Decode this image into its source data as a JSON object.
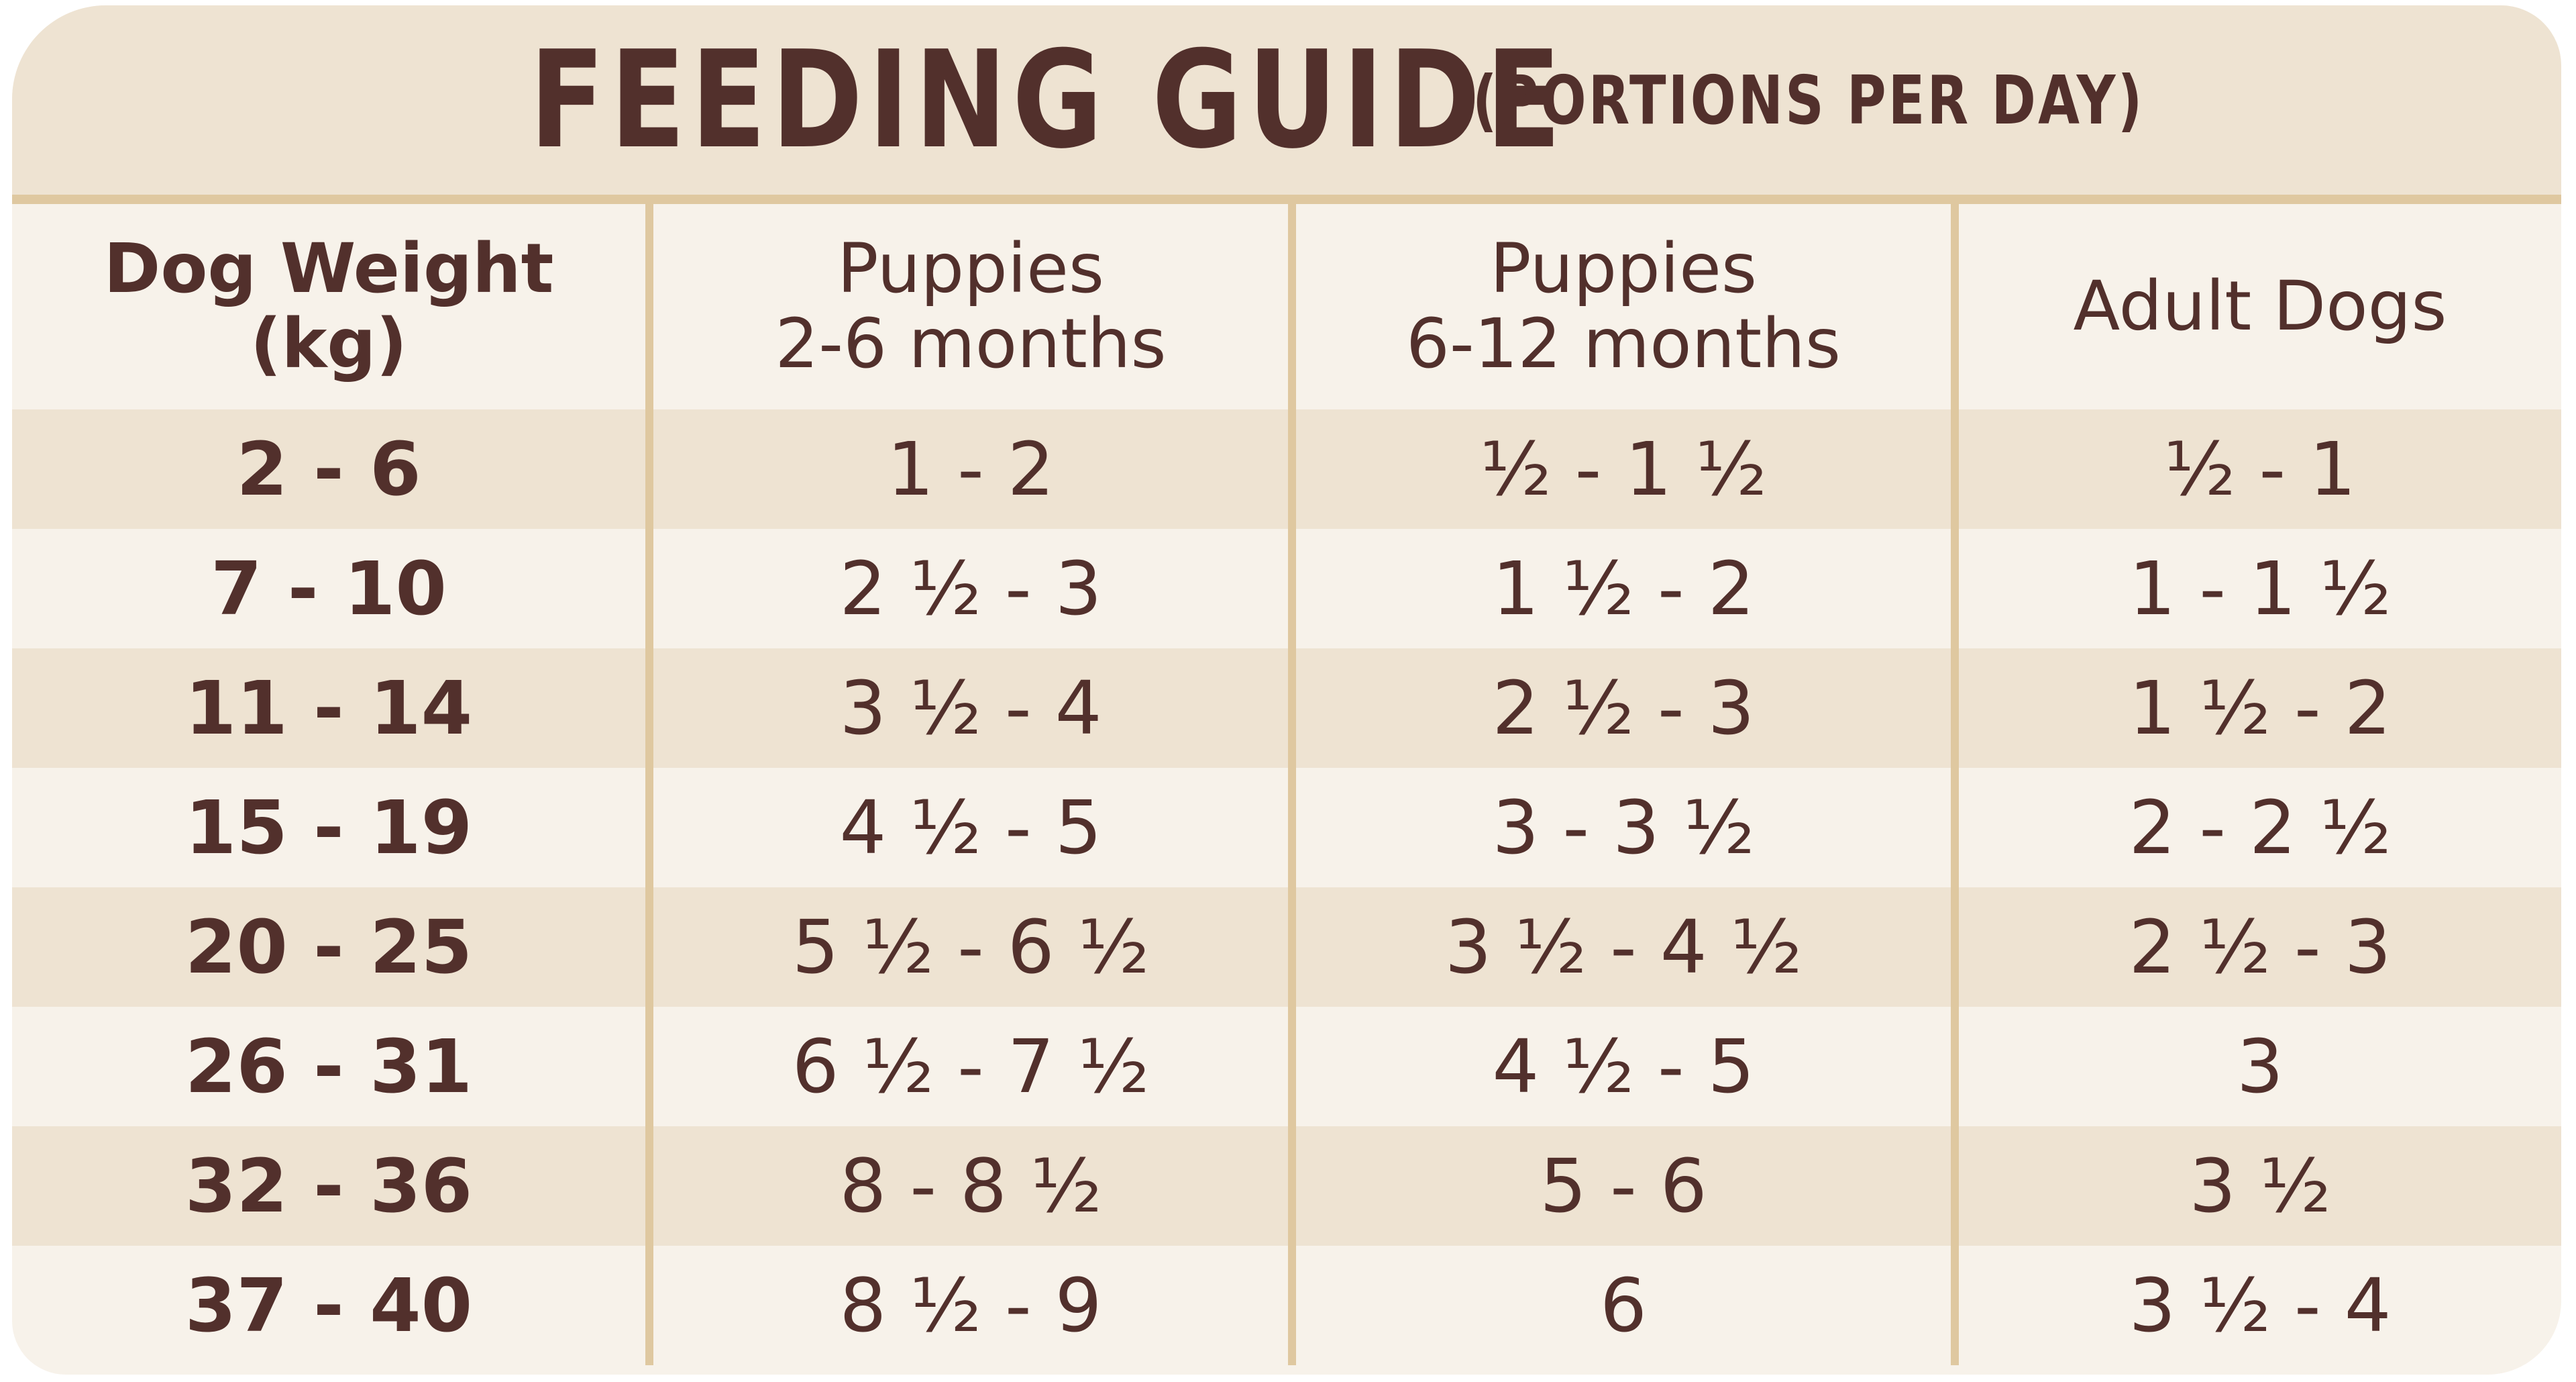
{
  "title": "FEEDING GUIDE",
  "subtitle": "(PORTIONS PER DAY)",
  "columns": [
    {
      "line1": "Dog Weight",
      "line2": "(kg)"
    },
    {
      "line1": "Puppies",
      "line2": "2-6 months"
    },
    {
      "line1": "Puppies",
      "line2": "6-12 months"
    },
    {
      "line1": "Adult Dogs",
      "line2": ""
    }
  ],
  "rows": [
    [
      "2 - 6",
      "1 - 2",
      "½ - 1 ½",
      "½ - 1"
    ],
    [
      "7 - 10",
      "2 ½ - 3",
      "1 ½ - 2",
      "1 - 1 ½"
    ],
    [
      "11 - 14",
      "3 ½ - 4",
      "2 ½ - 3",
      "1 ½ - 2"
    ],
    [
      "15 - 19",
      "4 ½ - 5",
      "3 - 3 ½",
      "2 - 2 ½"
    ],
    [
      "20 - 25",
      "5 ½ - 6 ½",
      "3 ½ - 4 ½",
      "2 ½ - 3"
    ],
    [
      "26 - 31",
      "6 ½ - 7 ½",
      "4 ½ - 5",
      "3"
    ],
    [
      "32 - 36",
      "8 - 8 ½",
      "5 - 6",
      "3 ½"
    ],
    [
      "37 - 40",
      "8 ½ - 9",
      "6",
      "3 ½ - 4"
    ]
  ],
  "colors": {
    "text": "#52302C",
    "header_bg": "#EEE3D2",
    "row_light": "#F7F2EA",
    "divider": "#DFC8A0"
  }
}
